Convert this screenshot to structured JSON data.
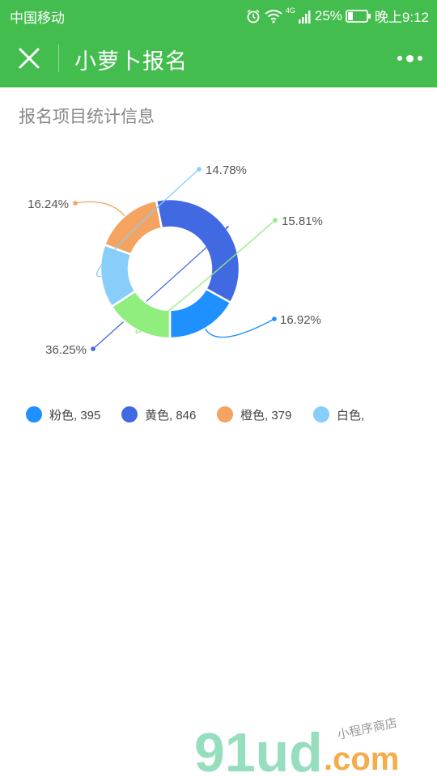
{
  "status_bar": {
    "carrier": "中国移动",
    "network": "4G",
    "battery": "25%",
    "time": "晚上9:12"
  },
  "nav": {
    "title": "小萝卜报名",
    "close_icon": "close-icon",
    "more_icon": "more-dots-icon"
  },
  "page": {
    "section_title": "报名项目统计信息"
  },
  "chart_data": {
    "type": "pie",
    "style": "donut",
    "slices": [
      {
        "label": "粉色",
        "value": 395,
        "percent_label": "16.92%",
        "color": "#1e90ff"
      },
      {
        "label": "黄色",
        "value": 846,
        "percent_label": "36.25%",
        "color": "#4169e1"
      },
      {
        "label": "橙色",
        "value": 379,
        "percent_label": "16.24%",
        "color": "#f4a460"
      },
      {
        "label": "白色",
        "value": 345,
        "percent_label": "14.78%",
        "color": "#87cefa"
      },
      {
        "label": "",
        "value": 369,
        "percent_label": "15.81%",
        "color": "#90ee7e"
      }
    ],
    "legend": [
      {
        "text": "粉色, 395",
        "color": "#1e90ff"
      },
      {
        "text": "黄色, 846",
        "color": "#4169e1"
      },
      {
        "text": "橙色, 379",
        "color": "#f4a460"
      },
      {
        "text": "白色,",
        "color": "#87cefa"
      }
    ]
  },
  "watermark": {
    "brand": "91ud",
    "domain": ".com",
    "tagline": "小程序商店"
  },
  "colors": {
    "nav_green": "#44bd4f",
    "section_title": "#888888"
  }
}
